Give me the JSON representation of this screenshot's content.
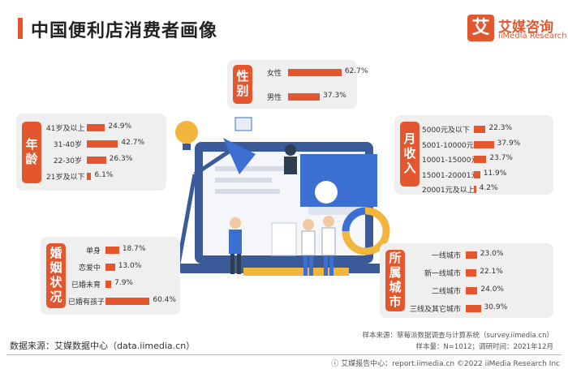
{
  "header": {
    "title": "中国便利店消费者画像"
  },
  "brand": {
    "mark": "艾",
    "name": "艾媒咨询",
    "sub": "iiMedia Research"
  },
  "colors": {
    "accent": "#e4572e",
    "panel": "#efefef"
  },
  "chart_data": [
    {
      "type": "bar",
      "title": "性别",
      "categories": [
        "女性",
        "男性"
      ],
      "values": [
        62.7,
        37.3
      ],
      "value_labels": [
        "62.7%",
        "37.3%"
      ]
    },
    {
      "type": "bar",
      "title": "年龄",
      "categories": [
        "41岁及以上",
        "31-40岁",
        "22-30岁",
        "21岁及以下"
      ],
      "values": [
        24.9,
        42.7,
        26.3,
        6.1
      ],
      "value_labels": [
        "24.9%",
        "42.7%",
        "26.3%",
        "6.1%"
      ]
    },
    {
      "type": "bar",
      "title": "月收入",
      "categories": [
        "5000元及以下",
        "5001-10000元",
        "10001-15000元",
        "15001-20001元",
        "20001元及以上"
      ],
      "values": [
        22.3,
        37.9,
        23.7,
        11.9,
        4.2
      ],
      "value_labels": [
        "22.3%",
        "37.9%",
        "23.7%",
        "11.9%",
        "4.2%"
      ]
    },
    {
      "type": "bar",
      "title": "婚姻状况",
      "categories": [
        "单身",
        "恋爱中",
        "已婚未育",
        "已婚有孩子"
      ],
      "values": [
        18.7,
        13.0,
        7.9,
        60.4
      ],
      "value_labels": [
        "18.7%",
        "13.0%",
        "7.9%",
        "60.4%"
      ]
    },
    {
      "type": "bar",
      "title": "所属城市",
      "categories": [
        "一线城市",
        "新一线城市",
        "二线城市",
        "三线及其它城市"
      ],
      "values": [
        23.0,
        22.1,
        24.0,
        30.9
      ],
      "value_labels": [
        "23.0%",
        "22.1%",
        "24.0%",
        "30.9%"
      ]
    }
  ],
  "footer": {
    "source": "数据来源：艾媒数据中心（data.iimedia.cn）",
    "sample_source": "样本来源：草莓派数据调查与计算系统（survey.iimedia.cn）",
    "sample_size": "样本量：N=1012；调研时间：2021年12月",
    "copyright": "ⓘ 艾媒报告中心：report.iimedia.cn    ©2022  iiMedia Research  Inc"
  }
}
